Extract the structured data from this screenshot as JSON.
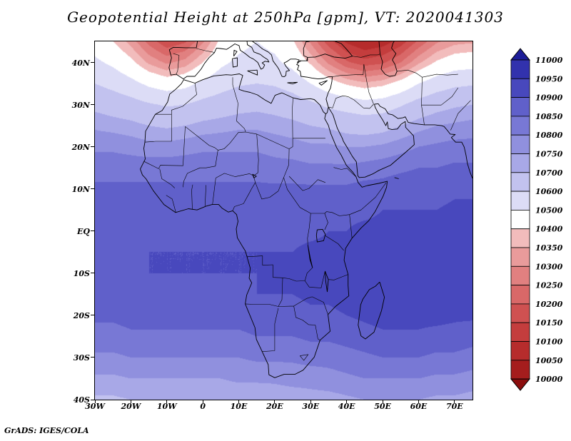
{
  "header": {
    "title": "Geopotential Height at 250hPa [gpm], VT: 2020041303"
  },
  "footer": {
    "credit": "GrADS: IGES/COLA"
  },
  "chart_data": {
    "type": "heatmap",
    "title": "Geopotential Height at 250hPa [gpm], VT: 2020041303",
    "variable": "Geopotential Height",
    "pressure_level": "250hPa",
    "units": "gpm",
    "valid_time": "2020041303",
    "projection": "latlon",
    "lon_range": [
      -30,
      75
    ],
    "lat_range": [
      -40,
      45
    ],
    "x_ticks": [
      "30W",
      "20W",
      "10W",
      "0",
      "10E",
      "20E",
      "30E",
      "40E",
      "50E",
      "60E",
      "70E"
    ],
    "x_tick_lons": [
      -30,
      -20,
      -10,
      0,
      10,
      20,
      30,
      40,
      50,
      60,
      70
    ],
    "y_ticks": [
      "40N",
      "30N",
      "20N",
      "10N",
      "EQ",
      "10S",
      "20S",
      "30S",
      "40S"
    ],
    "y_tick_lats": [
      40,
      30,
      20,
      10,
      0,
      -10,
      -20,
      -30,
      -40
    ],
    "legend_position": "right",
    "colorbar": {
      "levels": [
        10000,
        10050,
        10100,
        10150,
        10200,
        10250,
        10300,
        10350,
        10400,
        10500,
        10600,
        10700,
        10750,
        10800,
        10850,
        10900,
        10950,
        11000
      ],
      "colors": [
        "#8c0e0e",
        "#a51d1d",
        "#b62c2c",
        "#c43d3d",
        "#cf5151",
        "#d96868",
        "#e18080",
        "#e99b9b",
        "#f2bcbc",
        "#ffffff",
        "#dcdcf6",
        "#c2c2ef",
        "#a8a8e7",
        "#9090de",
        "#7878d5",
        "#6060ca",
        "#4848bd",
        "#3232ad",
        "#1d1d99"
      ]
    },
    "grid": {
      "lons": [
        -30,
        -25,
        -20,
        -15,
        -10,
        -5,
        0,
        5,
        10,
        15,
        20,
        25,
        30,
        35,
        40,
        45,
        50,
        55,
        60,
        65,
        70,
        75
      ],
      "lats": [
        45,
        40,
        35,
        30,
        25,
        20,
        15,
        10,
        5,
        0,
        -5,
        -10,
        -15,
        -20,
        -25,
        -30,
        -35,
        -40
      ],
      "values": [
        [
          10450,
          10400,
          10330,
          10230,
          10160,
          10190,
          10290,
          10420,
          10470,
          10500,
          10470,
          10410,
          10290,
          10170,
          10090,
          10050,
          10070,
          10120,
          10210,
          10290,
          10330,
          10340
        ],
        [
          10520,
          10480,
          10420,
          10340,
          10290,
          10320,
          10400,
          10480,
          10520,
          10540,
          10520,
          10470,
          10390,
          10290,
          10210,
          10170,
          10190,
          10250,
          10340,
          10410,
          10450,
          10460
        ],
        [
          10600,
          10570,
          10530,
          10480,
          10450,
          10470,
          10520,
          10560,
          10590,
          10600,
          10590,
          10560,
          10500,
          10440,
          10390,
          10360,
          10380,
          10430,
          10500,
          10550,
          10580,
          10590
        ],
        [
          10680,
          10660,
          10640,
          10610,
          10590,
          10600,
          10630,
          10650,
          10670,
          10680,
          10670,
          10650,
          10620,
          10580,
          10560,
          10540,
          10550,
          10590,
          10640,
          10670,
          10690,
          10700
        ],
        [
          10740,
          10730,
          10720,
          10700,
          10690,
          10700,
          10720,
          10730,
          10740,
          10740,
          10730,
          10720,
          10700,
          10690,
          10670,
          10660,
          10670,
          10700,
          10730,
          10750,
          10760,
          10770
        ],
        [
          10790,
          10790,
          10780,
          10770,
          10770,
          10780,
          10790,
          10790,
          10790,
          10790,
          10780,
          10770,
          10760,
          10760,
          10750,
          10750,
          10760,
          10780,
          10800,
          10810,
          10820,
          10820
        ],
        [
          10830,
          10830,
          10830,
          10830,
          10830,
          10830,
          10830,
          10830,
          10830,
          10830,
          10820,
          10820,
          10810,
          10810,
          10810,
          10820,
          10830,
          10840,
          10850,
          10850,
          10860,
          10860
        ],
        [
          10860,
          10860,
          10860,
          10860,
          10860,
          10860,
          10860,
          10860,
          10860,
          10860,
          10860,
          10860,
          10860,
          10860,
          10860,
          10870,
          10870,
          10880,
          10880,
          10880,
          10890,
          10890
        ],
        [
          10870,
          10870,
          10880,
          10880,
          10880,
          10880,
          10880,
          10880,
          10880,
          10880,
          10880,
          10880,
          10880,
          10890,
          10890,
          10890,
          10900,
          10900,
          10900,
          10900,
          10910,
          10910
        ],
        [
          10880,
          10880,
          10890,
          10890,
          10890,
          10890,
          10890,
          10890,
          10890,
          10890,
          10890,
          10890,
          10890,
          10900,
          10900,
          10910,
          10910,
          10920,
          10920,
          10920,
          10920,
          10920
        ],
        [
          10890,
          10890,
          10890,
          10900,
          10900,
          10900,
          10900,
          10900,
          10900,
          10900,
          10900,
          10900,
          10910,
          10910,
          10920,
          10920,
          10930,
          10930,
          10930,
          10930,
          10930,
          10930
        ],
        [
          10890,
          10900,
          10900,
          10900,
          10900,
          10900,
          10900,
          10900,
          10900,
          10900,
          10910,
          10910,
          10910,
          10920,
          10920,
          10930,
          10930,
          10940,
          10940,
          10940,
          10940,
          10940
        ],
        [
          10880,
          10890,
          10890,
          10890,
          10890,
          10890,
          10890,
          10890,
          10890,
          10900,
          10900,
          10900,
          10910,
          10910,
          10920,
          10930,
          10930,
          10940,
          10940,
          10940,
          10930,
          10930
        ],
        [
          10860,
          10860,
          10870,
          10870,
          10870,
          10870,
          10870,
          10870,
          10870,
          10880,
          10880,
          10880,
          10890,
          10890,
          10900,
          10910,
          10920,
          10920,
          10920,
          10920,
          10910,
          10910
        ],
        [
          10830,
          10830,
          10840,
          10840,
          10840,
          10840,
          10840,
          10840,
          10840,
          10850,
          10850,
          10850,
          10860,
          10860,
          10870,
          10880,
          10890,
          10890,
          10890,
          10880,
          10880,
          10870
        ],
        [
          10790,
          10790,
          10800,
          10800,
          10800,
          10800,
          10800,
          10800,
          10800,
          10810,
          10810,
          10810,
          10820,
          10820,
          10830,
          10840,
          10850,
          10850,
          10850,
          10840,
          10840,
          10830
        ],
        [
          10740,
          10740,
          10750,
          10750,
          10750,
          10750,
          10750,
          10750,
          10760,
          10760,
          10760,
          10770,
          10770,
          10780,
          10790,
          10800,
          10800,
          10800,
          10800,
          10790,
          10790,
          10780
        ],
        [
          10690,
          10690,
          10700,
          10700,
          10700,
          10700,
          10700,
          10710,
          10710,
          10710,
          10720,
          10720,
          10730,
          10730,
          10740,
          10750,
          10750,
          10750,
          10750,
          10740,
          10740,
          10730
        ]
      ]
    }
  }
}
